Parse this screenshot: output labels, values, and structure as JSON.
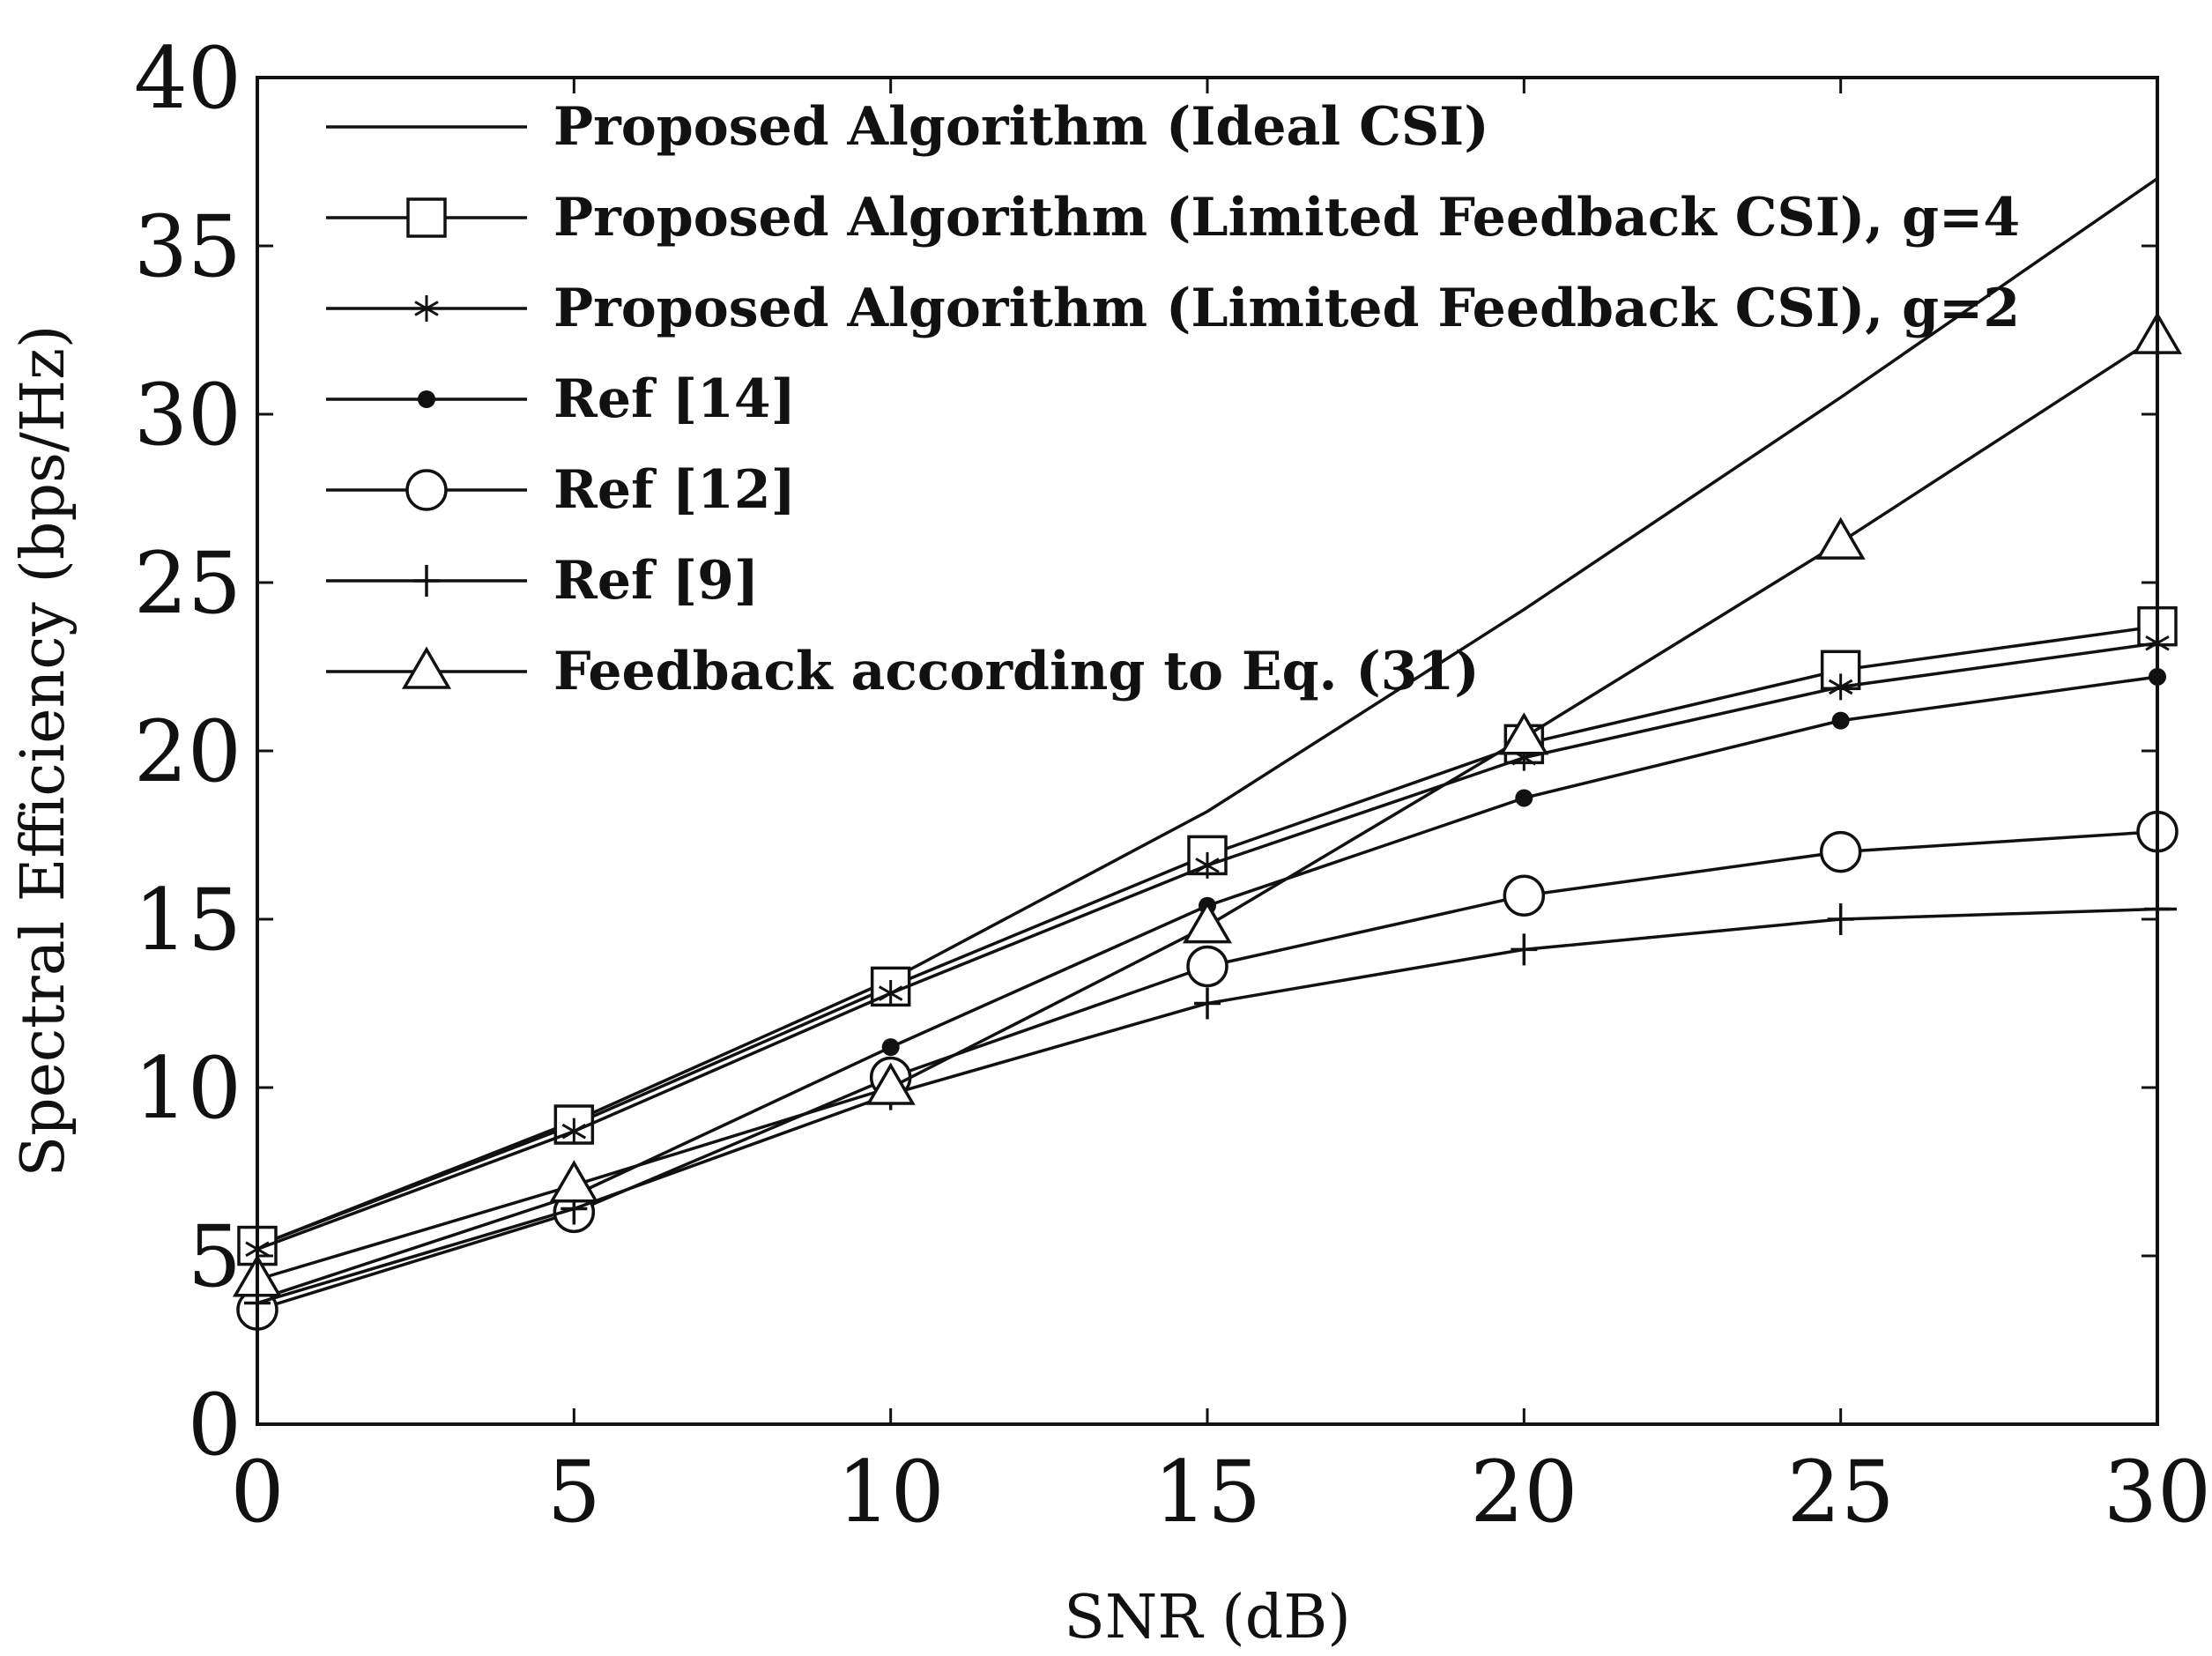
{
  "chart_data": {
    "type": "line",
    "title": "",
    "xlabel": "SNR (dB)",
    "ylabel": "Spectral Efficiency (bps/Hz)",
    "xlim": [
      0,
      30
    ],
    "ylim": [
      0,
      40
    ],
    "xticks": [
      "0",
      "5",
      "10",
      "15",
      "20",
      "25",
      "30"
    ],
    "yticks": [
      "0",
      "5",
      "10",
      "15",
      "20",
      "25",
      "30",
      "35",
      "40"
    ],
    "grid": false,
    "legend_position": "top-left",
    "x": [
      0,
      5,
      10,
      15,
      20,
      25,
      30
    ],
    "series": [
      {
        "name": "Proposed Algorithm (Ideal CSI)",
        "marker": "none",
        "values": [
          5.3,
          9.0,
          13.2,
          18.2,
          24.2,
          30.5,
          37.0
        ]
      },
      {
        "name": "Proposed Algorithm (Limited Feedback CSI), g=4",
        "marker": "square",
        "values": [
          5.3,
          8.9,
          13.0,
          16.9,
          20.2,
          22.4,
          23.7
        ]
      },
      {
        "name": "Proposed Algorithm (Limited Feedback CSI), g=2",
        "marker": "star",
        "values": [
          5.2,
          8.7,
          12.8,
          16.6,
          19.8,
          21.9,
          23.2
        ]
      },
      {
        "name": "Ref [14]",
        "marker": "dot",
        "values": [
          3.7,
          6.8,
          11.2,
          15.4,
          18.6,
          20.9,
          22.2
        ]
      },
      {
        "name": "Ref [12]",
        "marker": "circle",
        "values": [
          3.4,
          6.3,
          10.3,
          13.6,
          15.7,
          17.0,
          17.6
        ]
      },
      {
        "name": "Ref [9]",
        "marker": "plus",
        "values": [
          3.6,
          6.4,
          9.8,
          12.5,
          14.1,
          15.0,
          15.3
        ]
      },
      {
        "name": "Feedback according to Eq. (31)",
        "marker": "triangle",
        "values": [
          4.3,
          7.1,
          10.0,
          14.8,
          20.4,
          26.2,
          32.3
        ]
      }
    ]
  }
}
